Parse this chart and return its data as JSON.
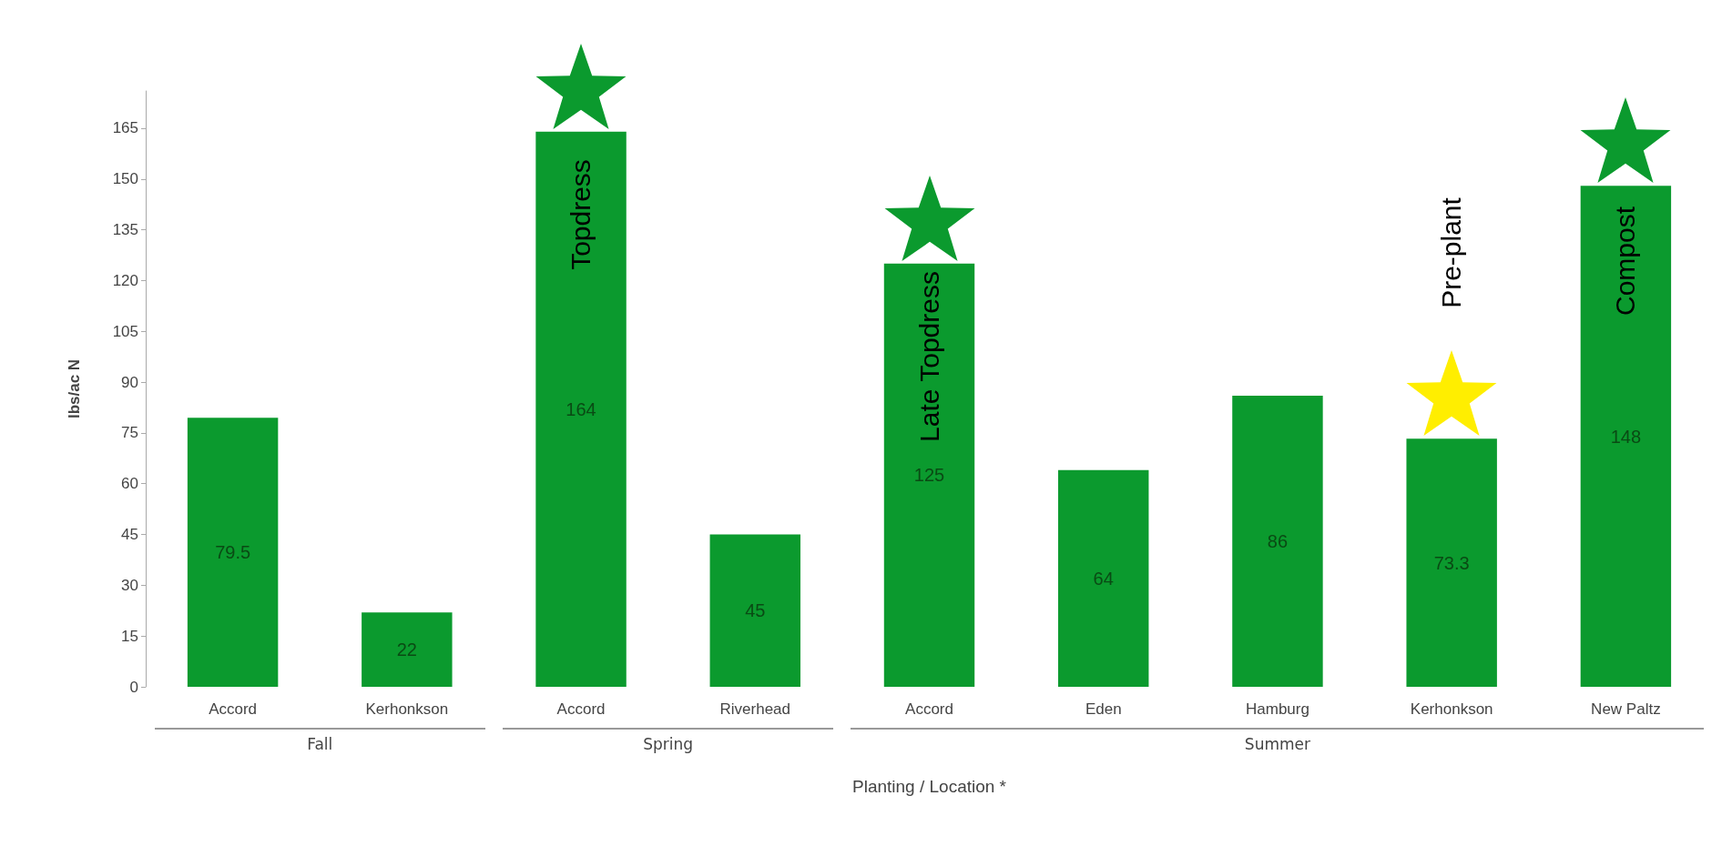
{
  "chart_data": {
    "type": "bar",
    "xlabel": "Planting / Location *",
    "ylabel": "lbs/ac N",
    "categories": [
      "Accord",
      "Kerhonkson",
      "Accord",
      "Riverhead",
      "Accord",
      "Eden",
      "Hamburg",
      "Kerhonkson",
      "New Paltz"
    ],
    "values": [
      79.5,
      22,
      164,
      45,
      125,
      64,
      86,
      73.3,
      148
    ],
    "color": "#0b9a2e",
    "data_labels": true,
    "ylim": [
      0,
      176
    ],
    "yticks": [
      0,
      15,
      30,
      45,
      60,
      75,
      90,
      105,
      120,
      135,
      150,
      165
    ],
    "grid": false,
    "annotations": [
      "Fall",
      "Spring",
      "Summer",
      "Topdress",
      "Late Topdress",
      "Pre-plant",
      "Compost"
    ]
  }
}
